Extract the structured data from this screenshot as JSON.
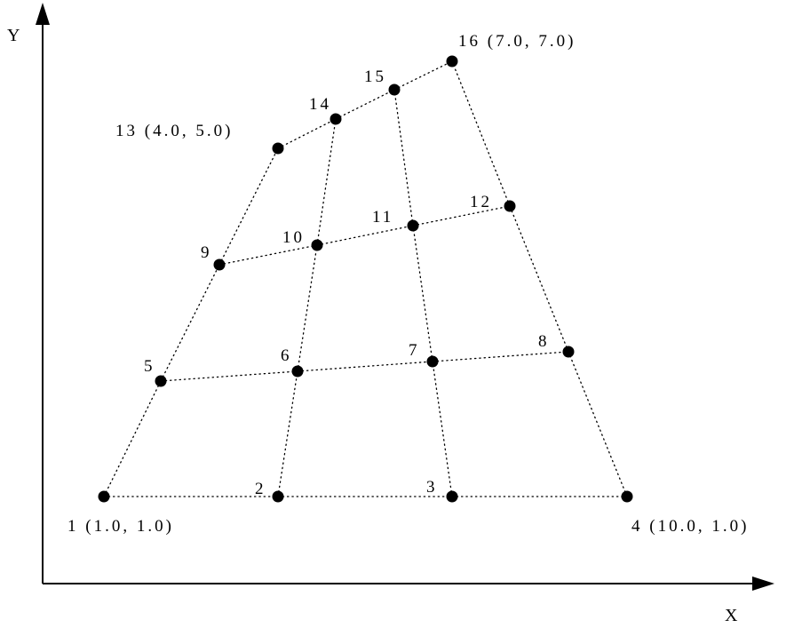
{
  "axes": {
    "x_label": "X",
    "y_label": "Y"
  },
  "nodes": [
    {
      "id": 1,
      "label": "1 (1.0, 1.0)"
    },
    {
      "id": 2,
      "label": "2"
    },
    {
      "id": 3,
      "label": "3"
    },
    {
      "id": 4,
      "label": "4 (10.0, 1.0)"
    },
    {
      "id": 5,
      "label": "5"
    },
    {
      "id": 6,
      "label": "6"
    },
    {
      "id": 7,
      "label": "7"
    },
    {
      "id": 8,
      "label": "8"
    },
    {
      "id": 9,
      "label": "9"
    },
    {
      "id": 10,
      "label": "10"
    },
    {
      "id": 11,
      "label": "11"
    },
    {
      "id": 12,
      "label": "12"
    },
    {
      "id": 13,
      "label": "13 (4.0, 5.0)"
    },
    {
      "id": 14,
      "label": "14"
    },
    {
      "id": 15,
      "label": "15"
    },
    {
      "id": 16,
      "label": "16 (7.0, 7.0)"
    }
  ],
  "grid": {
    "rows": [
      [
        1,
        2,
        3,
        4
      ],
      [
        5,
        6,
        7,
        8
      ],
      [
        9,
        10,
        11,
        12
      ],
      [
        13,
        14,
        15,
        16
      ]
    ],
    "columns": [
      [
        1,
        5,
        9,
        13
      ],
      [
        2,
        6,
        10,
        14
      ],
      [
        3,
        7,
        11,
        15
      ],
      [
        4,
        8,
        12,
        16
      ]
    ]
  },
  "colors": {
    "ink": "#000000",
    "background": "#ffffff"
  }
}
